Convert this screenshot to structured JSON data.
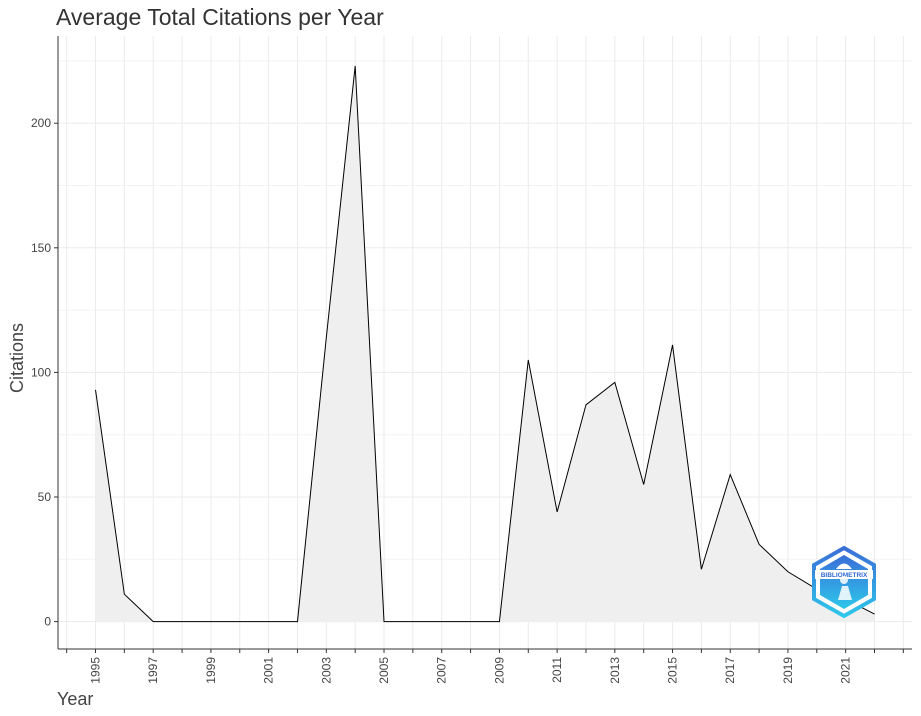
{
  "chart_data": {
    "type": "area",
    "title": "Average Total Citations per Year",
    "xlabel": "Year",
    "ylabel": "Citations",
    "x": [
      1995,
      1996,
      1997,
      1998,
      1999,
      2000,
      2001,
      2002,
      2003,
      2004,
      2005,
      2006,
      2007,
      2008,
      2009,
      2010,
      2011,
      2012,
      2013,
      2014,
      2015,
      2016,
      2017,
      2018,
      2019,
      2020,
      2021,
      2022
    ],
    "values": [
      93,
      11,
      0,
      0,
      0,
      0,
      0,
      0,
      114,
      223,
      0,
      0,
      0,
      0,
      0,
      105,
      44,
      87,
      96,
      55,
      111,
      21,
      59,
      31,
      20,
      13,
      9,
      3
    ],
    "x_tick_labels": [
      "1995",
      "1997",
      "1999",
      "2001",
      "2003",
      "2005",
      "2007",
      "2009",
      "2011",
      "2013",
      "2015",
      "2017",
      "2019",
      "2021"
    ],
    "y_tick_labels": [
      "0",
      "50",
      "100",
      "150",
      "200"
    ],
    "xlim": [
      1993.7,
      2023.3
    ],
    "ylim": [
      -11,
      235
    ],
    "grid": true,
    "colors": {
      "line": "#000000",
      "fill": "#efefef",
      "grid": "#ebebeb",
      "axis": "#333333",
      "text": "#444444"
    }
  },
  "logo": {
    "name": "bibliometrix-logo",
    "text": "BIBLIOMETRIX"
  }
}
